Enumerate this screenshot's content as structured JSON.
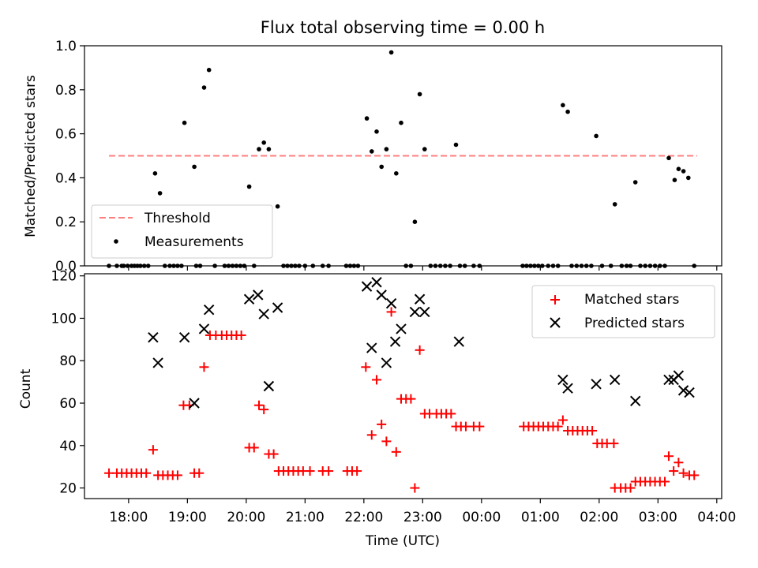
{
  "chart_data": [
    {
      "type": "scatter",
      "title": "Flux total observing time = 0.00 h",
      "xlabel": "",
      "ylabel": "Matched/Predicted stars",
      "xlim": [
        "17:15",
        "04:05"
      ],
      "ylim": [
        0,
        1.0
      ],
      "yticks": [
        "0.0",
        "0.2",
        "0.4",
        "0.6",
        "0.8",
        "1.0"
      ],
      "legend": {
        "position": "lower-left",
        "entries": [
          "Threshold",
          "Measurements"
        ]
      },
      "threshold": {
        "name": "Threshold",
        "value": 0.5,
        "x_start": "17:40",
        "x_end": "03:40",
        "color": "#ff7f7f",
        "style": "dashed"
      },
      "series": [
        {
          "name": "Measurements",
          "color": "#000000",
          "marker": "dot",
          "points": [
            [
              "17:40",
              0.0
            ],
            [
              "17:48",
              0.0
            ],
            [
              "17:53",
              0.0
            ],
            [
              "17:55",
              0.0
            ],
            [
              "17:59",
              0.0
            ],
            [
              "18:03",
              0.0
            ],
            [
              "18:06",
              0.0
            ],
            [
              "18:09",
              0.0
            ],
            [
              "18:12",
              0.0
            ],
            [
              "18:16",
              0.0
            ],
            [
              "18:20",
              0.0
            ],
            [
              "18:27",
              0.42
            ],
            [
              "18:32",
              0.33
            ],
            [
              "18:37",
              0.0
            ],
            [
              "18:42",
              0.0
            ],
            [
              "18:46",
              0.0
            ],
            [
              "18:50",
              0.0
            ],
            [
              "18:54",
              0.0
            ],
            [
              "18:57",
              0.65
            ],
            [
              "19:09",
              0.0
            ],
            [
              "19:07",
              0.45
            ],
            [
              "19:13",
              0.0
            ],
            [
              "19:17",
              0.81
            ],
            [
              "19:22",
              0.89
            ],
            [
              "19:28",
              0.0
            ],
            [
              "19:38",
              0.0
            ],
            [
              "19:42",
              0.0
            ],
            [
              "19:46",
              0.0
            ],
            [
              "19:50",
              0.0
            ],
            [
              "19:54",
              0.0
            ],
            [
              "19:58",
              0.0
            ],
            [
              "20:03",
              0.36
            ],
            [
              "20:08",
              0.0
            ],
            [
              "20:13",
              0.53
            ],
            [
              "20:18",
              0.56
            ],
            [
              "20:23",
              0.53
            ],
            [
              "20:32",
              0.27
            ],
            [
              "20:38",
              0.0
            ],
            [
              "20:42",
              0.0
            ],
            [
              "20:46",
              0.0
            ],
            [
              "20:50",
              0.0
            ],
            [
              "20:54",
              0.0
            ],
            [
              "21:00",
              0.0
            ],
            [
              "21:08",
              0.0
            ],
            [
              "21:18",
              0.0
            ],
            [
              "21:24",
              0.0
            ],
            [
              "21:42",
              0.0
            ],
            [
              "21:46",
              0.0
            ],
            [
              "21:50",
              0.0
            ],
            [
              "21:54",
              0.0
            ],
            [
              "22:03",
              0.67
            ],
            [
              "22:08",
              0.52
            ],
            [
              "22:13",
              0.61
            ],
            [
              "22:18",
              0.45
            ],
            [
              "22:23",
              0.53
            ],
            [
              "22:28",
              0.97
            ],
            [
              "22:33",
              0.42
            ],
            [
              "22:38",
              0.65
            ],
            [
              "22:43",
              0.0
            ],
            [
              "22:48",
              0.0
            ],
            [
              "22:52",
              0.2
            ],
            [
              "22:57",
              0.78
            ],
            [
              "23:02",
              0.53
            ],
            [
              "23:08",
              0.0
            ],
            [
              "23:13",
              0.0
            ],
            [
              "23:18",
              0.0
            ],
            [
              "23:23",
              0.0
            ],
            [
              "23:28",
              0.0
            ],
            [
              "23:34",
              0.55
            ],
            [
              "23:38",
              0.0
            ],
            [
              "23:43",
              0.0
            ],
            [
              "23:52",
              0.0
            ],
            [
              "23:58",
              0.0
            ],
            [
              "00:42",
              0.0
            ],
            [
              "00:46",
              0.0
            ],
            [
              "00:50",
              0.0
            ],
            [
              "00:54",
              0.0
            ],
            [
              "00:58",
              0.0
            ],
            [
              "01:02",
              0.0
            ],
            [
              "01:08",
              0.0
            ],
            [
              "01:13",
              0.0
            ],
            [
              "01:18",
              0.0
            ],
            [
              "01:23",
              0.73
            ],
            [
              "01:28",
              0.7
            ],
            [
              "01:32",
              0.0
            ],
            [
              "01:37",
              0.0
            ],
            [
              "01:42",
              0.0
            ],
            [
              "01:47",
              0.0
            ],
            [
              "01:52",
              0.0
            ],
            [
              "01:57",
              0.59
            ],
            [
              "02:03",
              0.0
            ],
            [
              "02:12",
              0.0
            ],
            [
              "02:16",
              0.28
            ],
            [
              "02:23",
              0.0
            ],
            [
              "02:28",
              0.0
            ],
            [
              "02:32",
              0.0
            ],
            [
              "02:37",
              0.38
            ],
            [
              "02:42",
              0.0
            ],
            [
              "02:47",
              0.0
            ],
            [
              "02:52",
              0.0
            ],
            [
              "02:57",
              0.0
            ],
            [
              "03:02",
              0.0
            ],
            [
              "03:07",
              0.0
            ],
            [
              "03:11",
              0.49
            ],
            [
              "03:17",
              0.39
            ],
            [
              "03:21",
              0.44
            ],
            [
              "03:26",
              0.43
            ],
            [
              "03:31",
              0.4
            ],
            [
              "03:37",
              0.0
            ]
          ]
        }
      ]
    },
    {
      "type": "scatter",
      "title": "",
      "xlabel": "Time (UTC)",
      "ylabel": "Count",
      "xlim": [
        "17:15",
        "04:05"
      ],
      "ylim": [
        15,
        121
      ],
      "yticks": [
        "20",
        "40",
        "60",
        "80",
        "100",
        "120"
      ],
      "xticks": [
        "18:00",
        "19:00",
        "20:00",
        "21:00",
        "22:00",
        "23:00",
        "00:00",
        "01:00",
        "02:00",
        "03:00",
        "04:00"
      ],
      "legend": {
        "position": "top-right",
        "entries": [
          "Matched stars",
          "Predicted stars"
        ]
      },
      "series": [
        {
          "name": "Matched stars",
          "color": "#ff0000",
          "marker": "plus",
          "points": [
            [
              "17:40",
              27
            ],
            [
              "17:48",
              27
            ],
            [
              "17:53",
              27
            ],
            [
              "17:58",
              27
            ],
            [
              "18:03",
              27
            ],
            [
              "18:08",
              27
            ],
            [
              "18:13",
              27
            ],
            [
              "18:18",
              27
            ],
            [
              "18:25",
              38
            ],
            [
              "18:30",
              26
            ],
            [
              "18:35",
              26
            ],
            [
              "18:40",
              26
            ],
            [
              "18:45",
              26
            ],
            [
              "18:50",
              26
            ],
            [
              "18:56",
              59
            ],
            [
              "19:02",
              59
            ],
            [
              "19:07",
              27
            ],
            [
              "19:12",
              27
            ],
            [
              "19:17",
              77
            ],
            [
              "19:23",
              92
            ],
            [
              "19:29",
              92
            ],
            [
              "19:35",
              92
            ],
            [
              "19:40",
              92
            ],
            [
              "19:45",
              92
            ],
            [
              "19:50",
              92
            ],
            [
              "19:55",
              92
            ],
            [
              "20:03",
              39
            ],
            [
              "20:08",
              39
            ],
            [
              "20:13",
              59
            ],
            [
              "20:18",
              57
            ],
            [
              "20:23",
              36
            ],
            [
              "20:28",
              36
            ],
            [
              "20:33",
              28
            ],
            [
              "20:38",
              28
            ],
            [
              "20:43",
              28
            ],
            [
              "20:48",
              28
            ],
            [
              "20:53",
              28
            ],
            [
              "20:58",
              28
            ],
            [
              "21:05",
              28
            ],
            [
              "21:18",
              28
            ],
            [
              "21:24",
              28
            ],
            [
              "21:43",
              28
            ],
            [
              "21:48",
              28
            ],
            [
              "21:53",
              28
            ],
            [
              "22:02",
              77
            ],
            [
              "22:08",
              45
            ],
            [
              "22:13",
              71
            ],
            [
              "22:18",
              50
            ],
            [
              "22:23",
              42
            ],
            [
              "22:28",
              103
            ],
            [
              "22:33",
              37
            ],
            [
              "22:38",
              62
            ],
            [
              "22:43",
              62
            ],
            [
              "22:48",
              62
            ],
            [
              "22:52",
              20
            ],
            [
              "22:57",
              85
            ],
            [
              "23:02",
              55
            ],
            [
              "23:07",
              55
            ],
            [
              "23:14",
              55
            ],
            [
              "23:19",
              55
            ],
            [
              "23:24",
              55
            ],
            [
              "23:29",
              55
            ],
            [
              "23:34",
              49
            ],
            [
              "23:39",
              49
            ],
            [
              "23:44",
              49
            ],
            [
              "23:52",
              49
            ],
            [
              "23:58",
              49
            ],
            [
              "00:43",
              49
            ],
            [
              "00:48",
              49
            ],
            [
              "00:53",
              49
            ],
            [
              "00:58",
              49
            ],
            [
              "01:03",
              49
            ],
            [
              "01:08",
              49
            ],
            [
              "01:13",
              49
            ],
            [
              "01:18",
              49
            ],
            [
              "01:23",
              52
            ],
            [
              "01:28",
              47
            ],
            [
              "01:33",
              47
            ],
            [
              "01:38",
              47
            ],
            [
              "01:43",
              47
            ],
            [
              "01:48",
              47
            ],
            [
              "01:53",
              47
            ],
            [
              "01:58",
              41
            ],
            [
              "02:03",
              41
            ],
            [
              "02:08",
              41
            ],
            [
              "02:15",
              41
            ],
            [
              "02:16",
              20
            ],
            [
              "02:22",
              20
            ],
            [
              "02:27",
              20
            ],
            [
              "02:32",
              20
            ],
            [
              "02:37",
              23
            ],
            [
              "02:42",
              23
            ],
            [
              "02:47",
              23
            ],
            [
              "02:52",
              23
            ],
            [
              "02:57",
              23
            ],
            [
              "03:02",
              23
            ],
            [
              "03:07",
              23
            ],
            [
              "03:11",
              35
            ],
            [
              "03:16",
              28
            ],
            [
              "03:21",
              32
            ],
            [
              "03:26",
              27
            ],
            [
              "03:32",
              26
            ],
            [
              "03:37",
              26
            ]
          ]
        },
        {
          "name": "Predicted stars",
          "color": "#000000",
          "marker": "x",
          "points": [
            [
              "18:25",
              91
            ],
            [
              "18:30",
              79
            ],
            [
              "18:57",
              91
            ],
            [
              "19:07",
              60
            ],
            [
              "19:17",
              95
            ],
            [
              "19:22",
              104
            ],
            [
              "20:03",
              109
            ],
            [
              "20:12",
              111
            ],
            [
              "20:18",
              102
            ],
            [
              "20:23",
              68
            ],
            [
              "20:32",
              105
            ],
            [
              "22:03",
              115
            ],
            [
              "22:08",
              86
            ],
            [
              "22:13",
              117
            ],
            [
              "22:18",
              111
            ],
            [
              "22:23",
              79
            ],
            [
              "22:28",
              107
            ],
            [
              "22:32",
              89
            ],
            [
              "22:38",
              95
            ],
            [
              "22:52",
              103
            ],
            [
              "22:57",
              109
            ],
            [
              "23:02",
              103
            ],
            [
              "23:37",
              89
            ],
            [
              "01:23",
              71
            ],
            [
              "01:28",
              67
            ],
            [
              "01:57",
              69
            ],
            [
              "02:16",
              71
            ],
            [
              "02:37",
              61
            ],
            [
              "03:11",
              71
            ],
            [
              "03:16",
              71
            ],
            [
              "03:21",
              73
            ],
            [
              "03:26",
              66
            ],
            [
              "03:32",
              65
            ]
          ]
        }
      ]
    }
  ]
}
